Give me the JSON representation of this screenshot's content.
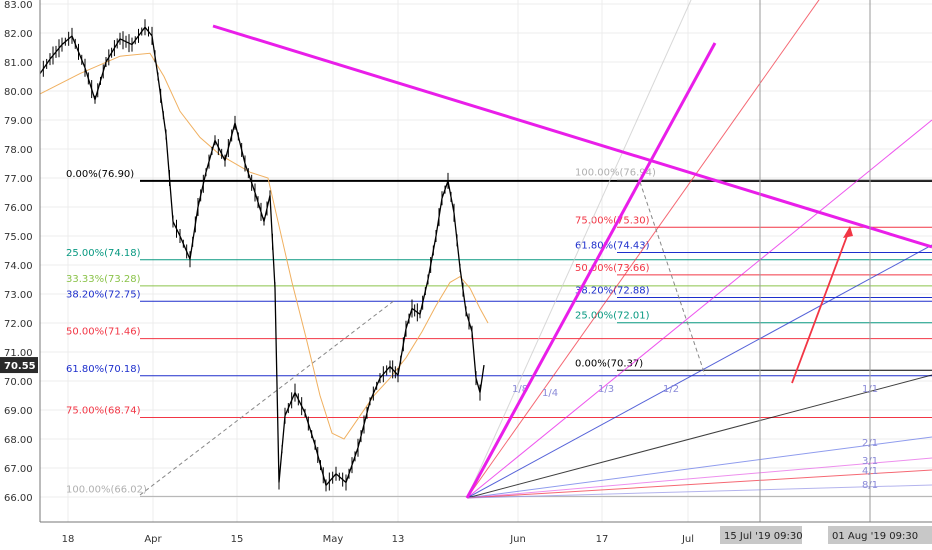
{
  "chart_data": {
    "type": "line",
    "title": "",
    "xlabel": "",
    "ylabel": "",
    "ylim": [
      65.5,
      83.3
    ],
    "y_ticks": [
      "83.00",
      "82.00",
      "81.00",
      "80.00",
      "79.00",
      "78.00",
      "77.00",
      "76.00",
      "75.00",
      "74.00",
      "73.00",
      "72.00",
      "71.00",
      "70.00",
      "69.00",
      "68.00",
      "67.00",
      "66.00"
    ],
    "x_ticks": [
      "18",
      "Apr",
      "15",
      "May",
      "13",
      "Jun",
      "17",
      "Jul"
    ],
    "x_highlight_labels": [
      "15 Jul '19   09:30",
      "01 Aug '19   09:30"
    ],
    "current_price": "70.55",
    "price_path": [
      [
        0,
        80.6
      ],
      [
        10,
        81.1
      ],
      [
        22,
        81.6
      ],
      [
        32,
        81.9
      ],
      [
        45,
        80.8
      ],
      [
        55,
        79.7
      ],
      [
        66,
        81.0
      ],
      [
        80,
        81.8
      ],
      [
        92,
        81.6
      ],
      [
        105,
        82.2
      ],
      [
        112,
        81.9
      ],
      [
        118,
        80.5
      ],
      [
        126,
        78.5
      ],
      [
        133,
        75.5
      ],
      [
        140,
        75.0
      ],
      [
        150,
        74.2
      ],
      [
        158,
        76.0
      ],
      [
        166,
        77.2
      ],
      [
        175,
        78.3
      ],
      [
        185,
        77.6
      ],
      [
        195,
        78.9
      ],
      [
        205,
        77.5
      ],
      [
        215,
        76.5
      ],
      [
        224,
        75.5
      ],
      [
        230,
        76.4
      ],
      [
        235,
        73.2
      ],
      [
        239,
        66.5
      ],
      [
        245,
        68.8
      ],
      [
        255,
        69.6
      ],
      [
        265,
        68.9
      ],
      [
        275,
        67.8
      ],
      [
        286,
        66.4
      ],
      [
        296,
        66.8
      ],
      [
        306,
        66.5
      ],
      [
        318,
        67.7
      ],
      [
        330,
        69.3
      ],
      [
        340,
        70.1
      ],
      [
        350,
        70.5
      ],
      [
        358,
        70.2
      ],
      [
        366,
        71.8
      ],
      [
        372,
        72.5
      ],
      [
        380,
        72.3
      ],
      [
        388,
        73.5
      ],
      [
        396,
        75.0
      ],
      [
        402,
        76.3
      ],
      [
        408,
        76.9
      ],
      [
        414,
        75.8
      ],
      [
        420,
        73.9
      ],
      [
        426,
        72.4
      ],
      [
        432,
        71.7
      ],
      [
        436,
        70.1
      ],
      [
        440,
        69.6
      ],
      [
        444,
        70.55
      ]
    ],
    "ma_path": [
      [
        0,
        79.9
      ],
      [
        40,
        80.6
      ],
      [
        80,
        81.2
      ],
      [
        110,
        81.3
      ],
      [
        124,
        80.5
      ],
      [
        140,
        79.3
      ],
      [
        160,
        78.4
      ],
      [
        180,
        77.8
      ],
      [
        210,
        77.2
      ],
      [
        228,
        77.0
      ],
      [
        240,
        75.2
      ],
      [
        252,
        73.4
      ],
      [
        266,
        71.5
      ],
      [
        280,
        69.5
      ],
      [
        292,
        68.2
      ],
      [
        304,
        68.0
      ],
      [
        318,
        68.7
      ],
      [
        334,
        69.5
      ],
      [
        350,
        70.1
      ],
      [
        366,
        70.8
      ],
      [
        382,
        71.7
      ],
      [
        396,
        72.6
      ],
      [
        410,
        73.4
      ],
      [
        420,
        73.6
      ],
      [
        430,
        73.2
      ],
      [
        440,
        72.5
      ],
      [
        448,
        72.0
      ]
    ],
    "fib_retracement_1": [
      {
        "label": "0.00%(76.90)",
        "level": 76.9,
        "color": "#000000"
      },
      {
        "label": "25.00%(74.18)",
        "level": 74.18,
        "color": "#089981"
      },
      {
        "label": "33.33%(73.28)",
        "level": 73.28,
        "color": "#8bc34a"
      },
      {
        "label": "38.20%(72.75)",
        "level": 72.75,
        "color": "#1e2fcc"
      },
      {
        "label": "50.00%(71.46)",
        "level": 71.46,
        "color": "#f23645"
      },
      {
        "label": "61.80%(70.18)",
        "level": 70.18,
        "color": "#1e2fcc"
      },
      {
        "label": "75.00%(68.74)",
        "level": 68.74,
        "color": "#f23645"
      },
      {
        "label": "100.00%(66.02)",
        "level": 66.02,
        "color": "#b0b0b0"
      }
    ],
    "fib_retracement_2": [
      {
        "label": "100.00%(76.94)",
        "level": 76.94,
        "color": "#b0b0b0"
      },
      {
        "label": "75.00%(75.30)",
        "level": 75.3,
        "color": "#f23645"
      },
      {
        "label": "61.80%(74.43)",
        "level": 74.43,
        "color": "#1e2fcc"
      },
      {
        "label": "50.00%(73.66)",
        "level": 73.66,
        "color": "#f23645"
      },
      {
        "label": "38.20%(72.88)",
        "level": 72.88,
        "color": "#1e2fcc"
      },
      {
        "label": "25.00%(72.01)",
        "level": 72.01,
        "color": "#089981"
      },
      {
        "label": "0.00%(70.37)",
        "level": 70.37,
        "color": "#000000"
      }
    ],
    "gann_fan_labels": [
      "1/8",
      "1/4",
      "1/3",
      "1/2",
      "1/1",
      "2/1",
      "3/1",
      "4/1",
      "8/1"
    ],
    "colors": {
      "magenta": "#e91ee9",
      "fib_red": "#f23645",
      "fib_blue": "#1e2fcc",
      "fib_green": "#089981",
      "candle": "#000000",
      "ma": "#f0b060",
      "arrow": "#f23645"
    }
  }
}
